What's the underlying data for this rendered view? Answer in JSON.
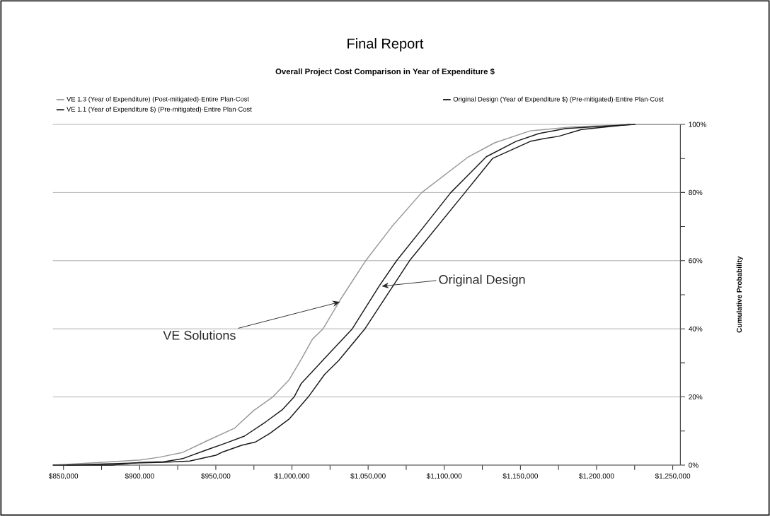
{
  "chart_data": {
    "type": "line",
    "title": "Final Report",
    "subtitle": "Overall Project Cost Comparison in Year of Expenditure $",
    "ylabel": "Cumulative Probability",
    "xlim": [
      843000,
      1255000
    ],
    "xticks": [
      {
        "value": 850000,
        "label": "$850,000"
      },
      {
        "value": 875000,
        "label": null
      },
      {
        "value": 900000,
        "label": "$900,000"
      },
      {
        "value": 925000,
        "label": null
      },
      {
        "value": 950000,
        "label": "$950,000"
      },
      {
        "value": 975000,
        "label": null
      },
      {
        "value": 1000000,
        "label": "$1,000,000"
      },
      {
        "value": 1025000,
        "label": null
      },
      {
        "value": 1050000,
        "label": "$1,050,000"
      },
      {
        "value": 1075000,
        "label": null
      },
      {
        "value": 1100000,
        "label": "$1,100,000"
      },
      {
        "value": 1125000,
        "label": null
      },
      {
        "value": 1150000,
        "label": "$1,150,000"
      },
      {
        "value": 1175000,
        "label": null
      },
      {
        "value": 1200000,
        "label": "$1,200,000"
      },
      {
        "value": 1225000,
        "label": null
      },
      {
        "value": 1250000,
        "label": "$1,250,000"
      }
    ],
    "ylim": [
      0,
      100
    ],
    "yticks": [
      {
        "value": 0,
        "label": "0%"
      },
      {
        "value": 10,
        "label": null
      },
      {
        "value": 20,
        "label": "20%"
      },
      {
        "value": 30,
        "label": null
      },
      {
        "value": 40,
        "label": "40%"
      },
      {
        "value": 50,
        "label": null
      },
      {
        "value": 60,
        "label": "60%"
      },
      {
        "value": 70,
        "label": null
      },
      {
        "value": 80,
        "label": "80%"
      },
      {
        "value": 90,
        "label": null
      },
      {
        "value": 100,
        "label": "100%"
      }
    ],
    "grid": "y",
    "legend": "top",
    "marker": "none",
    "line_style": "solid",
    "annotations": [
      {
        "text": "VE Solutions",
        "x": 1031600,
        "y": 47.9
      },
      {
        "text": "Original Design",
        "x": 1058800,
        "y": 52.5
      }
    ],
    "series": [
      {
        "name": "VE 1.3 (Year of Expenditure) (Post-mitigated)·Entire Plan·Cost",
        "color": "#999999",
        "x": [
          843000,
          881700,
          900300,
          912900,
          928200,
          943600,
          962200,
          974800,
          987400,
          998100,
          1006000,
          1013500,
          1020400,
          1032100,
          1048400,
          1065600,
          1085200,
          1115900,
          1133100,
          1156400,
          1184400,
          1226300,
          1255000
        ],
        "values": [
          0,
          1,
          1.5,
          2.3,
          3.7,
          7,
          10.8,
          16,
          20,
          25,
          31,
          37,
          40,
          48.8,
          60,
          70,
          80,
          90.5,
          94.6,
          98.1,
          99.3,
          100,
          100
        ]
      },
      {
        "name": "Original Design (Year of Expenditure $) (Pre-mitigated)·Entire Plan·Cost",
        "color": "#1a1a1a",
        "x": [
          843000,
          881700,
          900300,
          915700,
          928200,
          943600,
          956200,
          968800,
          982800,
          993500,
          1001400,
          1006000,
          1021400,
          1039600,
          1057200,
          1068700,
          1086600,
          1104300,
          1127600,
          1147000,
          1162000,
          1180000,
          1225400
        ],
        "values": [
          0,
          0,
          0.8,
          1,
          1.9,
          4.4,
          6.4,
          8.5,
          12.7,
          16.2,
          20,
          23.9,
          31.3,
          40,
          52.5,
          60,
          70,
          80,
          90.5,
          95,
          97.3,
          98.8,
          100
        ]
      },
      {
        "name": "VE 1.1 (Year of Expenditure $) (Pre-mitigated)·Entire Plan·Cost",
        "color": "#1a1a1a",
        "x": [
          852000,
          897000,
          915700,
          932900,
          950100,
          954800,
          966900,
          976200,
          985500,
          998100,
          1010700,
          1021400,
          1030700,
          1047900,
          1077200,
          1113600,
          1131700,
          1156400,
          1165000,
          1175000,
          1190000,
          1222000
        ],
        "values": [
          0,
          0.6,
          0.8,
          1.2,
          2.9,
          3.9,
          5.8,
          6.8,
          9.3,
          13.5,
          20,
          26.6,
          30.7,
          40,
          60,
          80,
          90,
          95,
          95.8,
          96.5,
          98.5,
          100
        ]
      }
    ]
  }
}
